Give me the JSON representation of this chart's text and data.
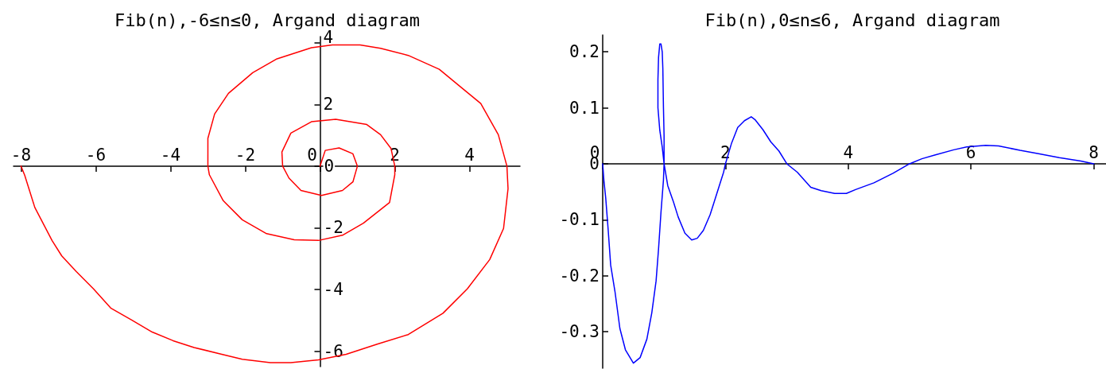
{
  "chart_data": [
    {
      "type": "line",
      "title": "Fib(n),-6≤n≤0, Argand diagram",
      "color": "#ff0000",
      "marker": "none",
      "x": [
        -8.0,
        -7.9,
        -7.63,
        -7.17,
        -6.91,
        -6.52,
        -6.06,
        -5.6,
        -5.04,
        -4.49,
        -3.93,
        -3.37,
        -2.63,
        -2.08,
        -1.33,
        -0.78,
        -0.04,
        0.7,
        1.53,
        2.36,
        3.29,
        3.94,
        4.54,
        4.91,
        5.03,
        5.0,
        4.77,
        4.3,
        3.75,
        3.19,
        2.36,
        1.62,
        1.07,
        0.33,
        -0.23,
        -1.15,
        -1.8,
        -2.45,
        -2.82,
        -3.0,
        -3.0,
        -2.96,
        -2.59,
        -2.08,
        -1.43,
        -0.69,
        -0.04,
        0.6,
        1.16,
        1.86,
        2.0,
        2.0,
        1.9,
        1.62,
        1.25,
        0.42,
        -0.23,
        -0.78,
        -1.02,
        -1.0,
        -0.83,
        -0.51,
        0.04,
        0.6,
        0.88,
        1.0,
        0.88,
        0.51,
        0.14,
        0.0
      ],
      "values": [
        0.0,
        -0.3,
        -1.34,
        -2.41,
        -2.91,
        -3.42,
        -3.98,
        -4.6,
        -4.99,
        -5.38,
        -5.66,
        -5.88,
        -6.1,
        -6.26,
        -6.37,
        -6.37,
        -6.28,
        -6.1,
        -5.77,
        -5.46,
        -4.77,
        -3.98,
        -3.03,
        -2.02,
        -0.73,
        0.0,
        1.02,
        2.03,
        2.58,
        3.14,
        3.59,
        3.82,
        3.93,
        3.93,
        3.84,
        3.48,
        3.03,
        2.36,
        1.69,
        0.9,
        0.0,
        -0.28,
        -1.12,
        -1.74,
        -2.19,
        -2.39,
        -2.41,
        -2.24,
        -1.85,
        -1.18,
        -0.28,
        0.0,
        0.57,
        1.02,
        1.35,
        1.52,
        1.44,
        1.07,
        0.46,
        0.0,
        -0.39,
        -0.79,
        -0.95,
        -0.79,
        -0.51,
        0.0,
        0.4,
        0.59,
        0.51,
        0.0
      ],
      "xlim": [
        -8.2,
        5.35
      ],
      "ylim": [
        -6.5,
        4.2
      ],
      "xticks": [
        -8,
        -6,
        -4,
        -2,
        0,
        2,
        4
      ],
      "yticks": [
        -6,
        -4,
        -2,
        0,
        2,
        4
      ]
    },
    {
      "type": "line",
      "title": "Fib(n),0≤n≤6, Argand diagram",
      "color": "#0000ff",
      "marker": "none",
      "x": [
        0.0,
        0.02,
        0.05,
        0.09,
        0.13,
        0.2,
        0.28,
        0.37,
        0.5,
        0.61,
        0.72,
        0.8,
        0.87,
        0.91,
        0.95,
        0.99,
        1.0,
        1.0,
        0.99,
        0.98,
        0.97,
        0.95,
        0.93,
        0.91,
        0.9,
        0.9,
        0.93,
        0.97,
        1.0,
        1.06,
        1.15,
        1.23,
        1.34,
        1.45,
        1.54,
        1.64,
        1.75,
        1.86,
        1.97,
        2.0,
        2.1,
        2.2,
        2.31,
        2.42,
        2.48,
        2.61,
        2.74,
        2.87,
        3.0,
        3.17,
        3.39,
        3.56,
        3.78,
        3.97,
        4.12,
        4.42,
        4.73,
        5.0,
        5.2,
        5.42,
        5.72,
        5.93,
        6.24,
        6.45,
        6.8,
        7.1,
        7.44,
        7.79,
        8.0
      ],
      "values": [
        0.0,
        -0.03,
        -0.062,
        -0.119,
        -0.181,
        -0.228,
        -0.294,
        -0.332,
        -0.356,
        -0.346,
        -0.313,
        -0.266,
        -0.209,
        -0.152,
        -0.086,
        -0.029,
        0.0,
        0.05,
        0.1,
        0.17,
        0.2,
        0.214,
        0.214,
        0.19,
        0.15,
        0.1,
        0.06,
        0.03,
        0.0,
        -0.039,
        -0.067,
        -0.095,
        -0.124,
        -0.136,
        -0.133,
        -0.119,
        -0.091,
        -0.053,
        -0.015,
        0.0,
        0.037,
        0.065,
        0.077,
        0.084,
        0.079,
        0.061,
        0.039,
        0.023,
        0.0,
        -0.015,
        -0.042,
        -0.048,
        -0.053,
        -0.053,
        -0.046,
        -0.034,
        -0.017,
        0.0,
        0.009,
        0.016,
        0.025,
        0.03,
        0.033,
        0.032,
        0.024,
        0.018,
        0.011,
        0.005,
        0.0
      ],
      "xlim": [
        0,
        8.2
      ],
      "ylim": [
        -0.365,
        0.23
      ],
      "xticks": [
        0,
        2,
        4,
        6,
        8
      ],
      "yticks": [
        -0.3,
        -0.2,
        -0.1,
        0,
        0.1,
        0.2
      ]
    }
  ]
}
